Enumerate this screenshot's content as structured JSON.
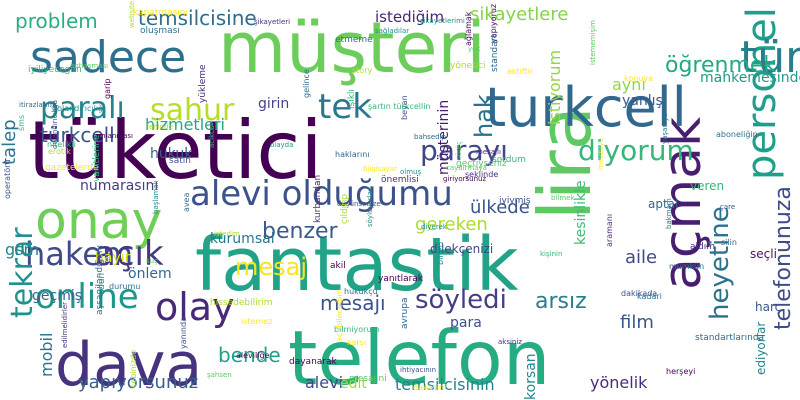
{
  "word_cloud": {
    "words": [
      {
        "text": "müşteri",
        "color": "#6ccd5a"
      },
      {
        "text": "tüketici",
        "color": "#440154"
      },
      {
        "text": "lira",
        "color": "#5ec962"
      },
      {
        "text": "fantastik",
        "color": "#20a386"
      },
      {
        "text": "telefon",
        "color": "#25ac82"
      },
      {
        "text": "dava",
        "color": "#46327e"
      },
      {
        "text": "açmak",
        "color": "#481f70"
      },
      {
        "text": "personel",
        "color": "#1f9e89"
      },
      {
        "text": "onay",
        "color": "#6ece58"
      },
      {
        "text": "turkcell",
        "color": "#31688e"
      },
      {
        "text": "sadece",
        "color": "#2d708e"
      },
      {
        "text": "tür",
        "color": "#277f8e"
      },
      {
        "text": "alevi olduğumu",
        "color": "#3b528b"
      },
      {
        "text": "olay",
        "color": "#482878"
      },
      {
        "text": "hakem",
        "color": "#3e4a89"
      },
      {
        "text": "online",
        "color": "#1f968b"
      },
      {
        "text": "paralı",
        "color": "#26828e"
      },
      {
        "text": "tekrar",
        "color": "#21918c"
      },
      {
        "text": "sahur",
        "color": "#b5de2b"
      },
      {
        "text": "tek",
        "color": "#2a788e"
      },
      {
        "text": "parayı",
        "color": "#404688"
      },
      {
        "text": "diyorum",
        "color": "#35b779"
      },
      {
        "text": "heyetine",
        "color": "#2c728e"
      },
      {
        "text": "telefonunuza",
        "color": "#3e4c8a"
      },
      {
        "text": "öğrenmek",
        "color": "#23a983"
      },
      {
        "text": "problem",
        "color": "#29af7f"
      },
      {
        "text": "temsilcisine",
        "color": "#2f6c8e"
      },
      {
        "text": "şikayetlere",
        "color": "#84d44b"
      },
      {
        "text": "türkcell",
        "color": "#3a548c"
      },
      {
        "text": "hizmetleri",
        "color": "#22a884"
      },
      {
        "text": "benzer",
        "color": "#38598c"
      },
      {
        "text": "açık",
        "color": "#453781"
      },
      {
        "text": "mesaj",
        "color": "#f6e620"
      },
      {
        "text": "söyledi",
        "color": "#433e85"
      },
      {
        "text": "arsız",
        "color": "#287d8e"
      },
      {
        "text": "mesajı",
        "color": "#3b528b"
      },
      {
        "text": "bende",
        "color": "#1fa088"
      },
      {
        "text": "yapıyorsunuz",
        "color": "#355f8d"
      },
      {
        "text": "temsilcisinin",
        "color": "#25848e"
      },
      {
        "text": "korsan",
        "color": "#24868e"
      },
      {
        "text": "yönelik",
        "color": "#472d7b"
      },
      {
        "text": "film",
        "color": "#39568c"
      },
      {
        "text": "gereken",
        "color": "#addc30"
      },
      {
        "text": "hak",
        "color": "#2d708e"
      },
      {
        "text": "aile",
        "color": "#3f4889"
      },
      {
        "text": "ülkede",
        "color": "#3b528b"
      },
      {
        "text": "kesinlikle",
        "color": "#3dbc74"
      },
      {
        "text": "müşterinin",
        "color": "#481b6d"
      },
      {
        "text": "istiyorum",
        "color": "#90d743"
      },
      {
        "text": "yanlış",
        "color": "#375a8c"
      },
      {
        "text": "aynı",
        "color": "#90d743"
      },
      {
        "text": "mahkemesinde",
        "color": "#1e9b8a"
      },
      {
        "text": "istediğim",
        "color": "#482475"
      },
      {
        "text": "hukuk",
        "color": "#355f8d"
      },
      {
        "text": "girin",
        "color": "#414487"
      },
      {
        "text": "numarasını",
        "color": "#433d84"
      },
      {
        "text": "kurumsal",
        "color": "#2a768e"
      },
      {
        "text": "talep",
        "color": "#2c738e"
      },
      {
        "text": "gsm",
        "color": "#26828e"
      },
      {
        "text": "hayır",
        "color": "#d8e219"
      },
      {
        "text": "önlem",
        "color": "#31688e"
      },
      {
        "text": "geçmiş",
        "color": "#33638d"
      },
      {
        "text": "para",
        "color": "#3b528b"
      },
      {
        "text": "alevi",
        "color": "#404688"
      },
      {
        "text": "edit",
        "color": "#a2da37"
      },
      {
        "text": "mobil",
        "color": "#2c738e"
      },
      {
        "text": "ediyorlar",
        "color": "#26818e"
      },
      {
        "text": "dilekçenizi",
        "color": "#3f4788"
      },
      {
        "text": "aptal",
        "color": "#31688e"
      },
      {
        "text": "veren",
        "color": "#35b779"
      },
      {
        "text": "seçli",
        "color": "#471164"
      },
      {
        "text": "harç",
        "color": "#39558c"
      }
    ],
    "small_words": [
      "söylüyorlar",
      "düşünsenize",
      "caydırmaya",
      "yapıyoruz",
      "aktiftir",
      "oluşması",
      "vakitlerine",
      "kurbandan",
      "cebinizde",
      "bahsedip",
      "olayda",
      "yanında",
      "geçtiyseniz",
      "garip",
      "gazetelerde",
      "aboneliğin",
      "bilmiyorum",
      "yükleme",
      "hissedebilirim",
      "standartlarında",
      "şikayetlerimi",
      "satın",
      "şahsen",
      "giriyorsunuz",
      "karşı",
      "aşsagilandığımı",
      "iyiliyecegim",
      "aksiniz",
      "website",
      "avrupa",
      "sağladılar",
      "dolandırıcılığa",
      "istememişim",
      "ağlamak",
      "bilgisayar",
      "hukukçu",
      "kişinin",
      "edilmelidirler",
      "lehinde",
      "haklarını",
      "olmuş",
      "iyiymiş",
      "mesajini",
      "yanıtlarak",
      "davasini",
      "etmeme",
      "sordum",
      "önemlisi",
      "erotik",
      "standart",
      "başlamalı",
      "çare",
      "suç",
      "aleviliğe",
      "konuya",
      "bakmam",
      "şartın türkcellin",
      "şikayetleri",
      "çıldırıp",
      "gelince",
      "dün",
      "beyan",
      "bilmek",
      "herşeyi",
      "mevzuyu",
      "durumu",
      "acikca",
      "aldım",
      "istedim",
      "silin",
      "diyerek",
      "dakikada",
      "süreç",
      "dayanarak",
      "açabileceğim",
      "yaşanıyor",
      "nitelikli",
      "aramanı",
      "story",
      "avea",
      "birleri",
      "operatörü",
      "yok",
      "akil",
      "kapatmasını",
      "kadari",
      "sms",
      "mesajlı",
      "yönetici",
      "itirazlarımı",
      "dolandırıcılığı",
      "ihtiyacının",
      "antlaşması",
      "cımlanması",
      "istemez",
      "mümkün",
      "ışıklı",
      "şeklinde"
    ]
  }
}
